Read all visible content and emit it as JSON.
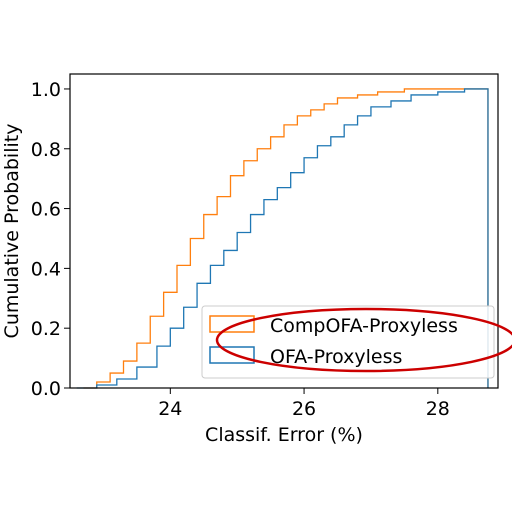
{
  "chart_data": {
    "type": "line",
    "subtype": "empirical-cdf-step",
    "title": "",
    "xlabel": "Classif. Error (%)",
    "ylabel": "Cumulative Probability",
    "xlim": [
      22.5,
      28.9
    ],
    "ylim": [
      0.0,
      1.05
    ],
    "xticks": [
      24,
      26,
      28
    ],
    "xtick_labels": [
      "24",
      "26",
      "28"
    ],
    "yticks": [
      0.0,
      0.2,
      0.4,
      0.6,
      0.8,
      1.0
    ],
    "ytick_labels": [
      "0.0",
      "0.2",
      "0.4",
      "0.6",
      "0.8",
      "1.0"
    ],
    "grid": false,
    "legend_position": "lower-right",
    "series": [
      {
        "name": "CompOFA-Proxyless",
        "color": "#ff7f0e",
        "x": [
          22.7,
          22.9,
          23.1,
          23.3,
          23.5,
          23.7,
          23.9,
          24.1,
          24.3,
          24.5,
          24.7,
          24.9,
          25.1,
          25.3,
          25.5,
          25.7,
          25.9,
          26.1,
          26.3,
          26.5,
          26.8,
          27.1,
          27.5,
          27.9,
          28.3,
          28.75
        ],
        "y": [
          0.0,
          0.02,
          0.05,
          0.09,
          0.15,
          0.24,
          0.32,
          0.41,
          0.5,
          0.58,
          0.64,
          0.71,
          0.76,
          0.8,
          0.84,
          0.88,
          0.91,
          0.93,
          0.95,
          0.97,
          0.98,
          0.99,
          1.0,
          1.0,
          1.0,
          1.0
        ]
      },
      {
        "name": "OFA-Proxyless",
        "color": "#1f77b4",
        "x": [
          22.6,
          22.9,
          23.2,
          23.5,
          23.8,
          24.0,
          24.2,
          24.4,
          24.6,
          24.8,
          25.0,
          25.2,
          25.4,
          25.6,
          25.8,
          26.0,
          26.2,
          26.4,
          26.6,
          26.8,
          27.0,
          27.3,
          27.6,
          28.0,
          28.4,
          28.75
        ],
        "y": [
          0.0,
          0.01,
          0.03,
          0.07,
          0.14,
          0.2,
          0.27,
          0.35,
          0.41,
          0.46,
          0.52,
          0.58,
          0.63,
          0.67,
          0.72,
          0.77,
          0.81,
          0.84,
          0.88,
          0.91,
          0.94,
          0.96,
          0.98,
          0.99,
          1.0,
          1.0
        ]
      }
    ],
    "annotation": {
      "shape": "ellipse",
      "color": "#cc0000",
      "encircles": "legend"
    }
  }
}
